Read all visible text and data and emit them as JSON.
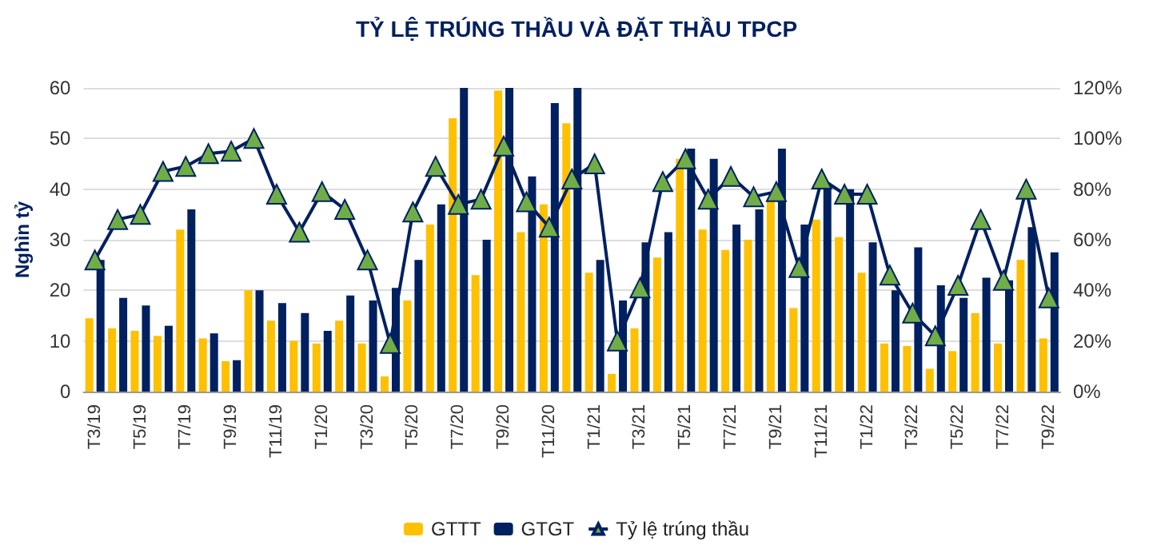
{
  "chart_data": {
    "type": "bar",
    "title": "TỶ LỆ TRÚNG THẦU VÀ ĐẶT THẦU TPCP",
    "ylabel": "Nghìn tỷ",
    "categories": [
      "T3/19",
      null,
      "T5/19",
      null,
      "T7/19",
      null,
      "T9/19",
      null,
      "T11/19",
      null,
      "T1/20",
      null,
      "T3/20",
      null,
      "T5/20",
      null,
      "T7/20",
      null,
      "T9/20",
      null,
      "T11/20",
      null,
      "T1/21",
      null,
      "T3/21",
      null,
      "T5/21",
      null,
      "T7/21",
      null,
      "T9/21",
      null,
      "T11/21",
      null,
      "T1/22",
      null,
      "T3/22",
      null,
      "T5/22",
      null,
      "T7/22",
      null,
      "T9/22"
    ],
    "series": [
      {
        "name": "GTTT",
        "color": "#ffc000",
        "values": [
          14.5,
          12.5,
          12,
          11,
          32,
          10.5,
          6,
          20,
          14,
          10,
          9.5,
          14,
          9.5,
          3,
          18,
          33,
          54,
          23,
          59.5,
          31.5,
          37,
          53,
          23.5,
          3.5,
          12.5,
          26.5,
          46,
          32,
          28,
          30,
          38,
          16.5,
          34,
          30.5,
          23.5,
          9.5,
          9,
          4.5,
          8,
          15.5,
          9.5,
          26,
          10.5
        ]
      },
      {
        "name": "GTGT",
        "color": "#002060",
        "values": [
          26,
          18.5,
          17,
          13,
          36,
          11.5,
          6.2,
          20,
          17.5,
          15.5,
          12,
          19,
          18,
          20.5,
          26,
          37,
          60,
          30,
          60,
          42.5,
          57,
          60,
          26,
          18,
          29.5,
          31.5,
          48,
          46,
          33,
          36,
          48,
          33,
          40,
          40,
          29.5,
          20,
          28.5,
          21,
          18.5,
          22.5,
          22,
          32.5,
          27.5
        ]
      },
      {
        "name": "Tỷ lệ trúng thầu",
        "type": "line",
        "axis": "y2",
        "color": "#002060",
        "marker": "triangle",
        "values": [
          52,
          68,
          70,
          87,
          89,
          94,
          95,
          100,
          78,
          63,
          79,
          72,
          52,
          19,
          71,
          89,
          74,
          76,
          97,
          75,
          65,
          84,
          90,
          20,
          41,
          83,
          92,
          76,
          85,
          77,
          79,
          49,
          84,
          78,
          78,
          46,
          31,
          22,
          42,
          68,
          44,
          80,
          37
        ]
      }
    ],
    "ylim": [
      0,
      60
    ],
    "yticks": [
      0,
      10,
      20,
      30,
      40,
      50,
      60
    ],
    "y2lim": [
      0,
      120
    ],
    "y2ticks": [
      {
        "value": 0,
        "label": "0%"
      },
      {
        "value": 20,
        "label": "20%"
      },
      {
        "value": 40,
        "label": "40%"
      },
      {
        "value": 60,
        "label": "60%"
      },
      {
        "value": 80,
        "label": "80%"
      },
      {
        "value": 100,
        "label": "100%"
      },
      {
        "value": 120,
        "label": "120%"
      }
    ],
    "grid": "y",
    "legend": "bottom"
  }
}
